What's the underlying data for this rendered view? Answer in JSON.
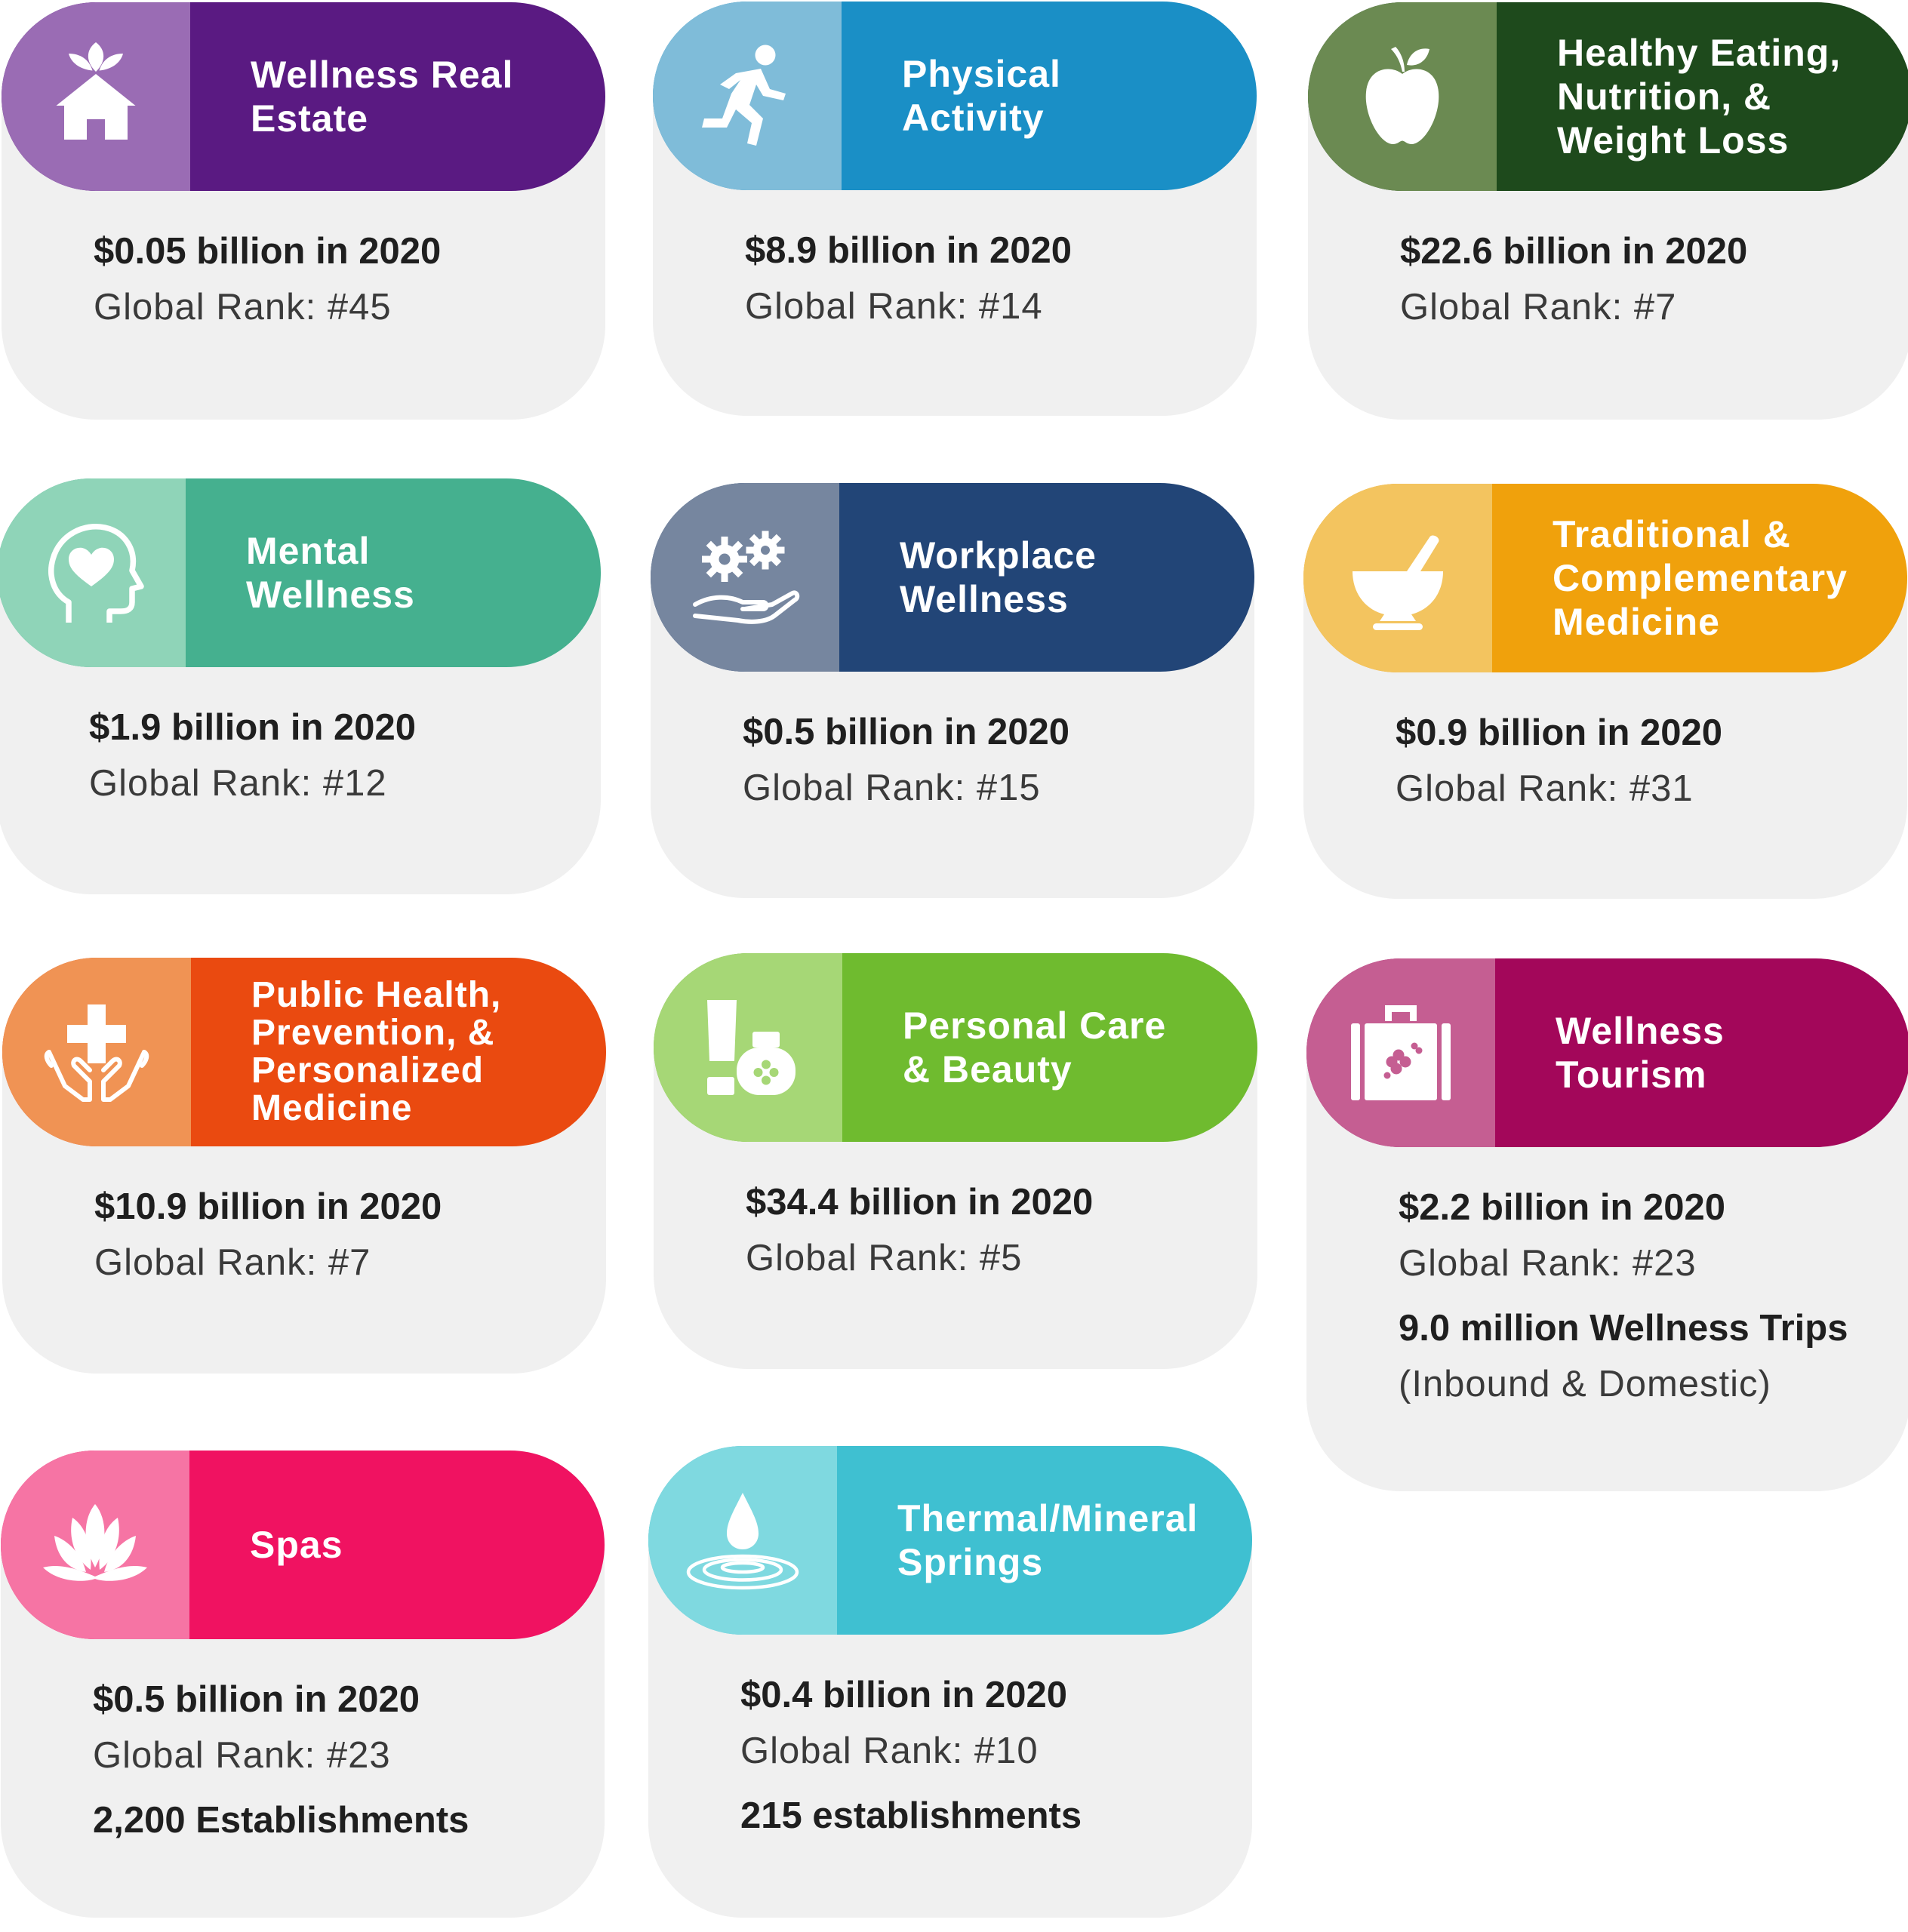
{
  "colors": {
    "card_bg": "#f0f0f0",
    "wellness_real_estate": [
      "#9a6cb4",
      "#5a1a82"
    ],
    "physical_activity": [
      "#7fbcd9",
      "#1a8fc6"
    ],
    "healthy_eating": [
      "#6b8a52",
      "#1e4a1c"
    ],
    "mental_wellness": [
      "#8fd4b8",
      "#45b08f"
    ],
    "workplace_wellness": [
      "#76869f",
      "#224577"
    ],
    "traditional_medicine": [
      "#f3c45f",
      "#f0a10c"
    ],
    "public_health": [
      "#f09354",
      "#ea4a10"
    ],
    "personal_care": [
      "#a6d776",
      "#6fbb2f"
    ],
    "wellness_tourism": [
      "#c55e92",
      "#a3075a"
    ],
    "spas": [
      "#f674a4",
      "#f01261"
    ],
    "thermal_springs": [
      "#7fd9e0",
      "#3fc0d1"
    ]
  },
  "cards": [
    {
      "title": "Wellness Real\nEstate",
      "icon": "house-leaf-icon",
      "value": "$0.05 billion in 2020",
      "rank": "Global Rank: #45"
    },
    {
      "title": "Physical\nActivity",
      "icon": "runner-icon",
      "value": "$8.9 billion in 2020",
      "rank": "Global Rank: #14"
    },
    {
      "title": "Healthy Eating,\nNutrition, &\nWeight Loss",
      "icon": "apple-icon",
      "value": "$22.6 billion in 2020",
      "rank": "Global Rank: #7"
    },
    {
      "title": "Mental\nWellness",
      "icon": "head-heart-icon",
      "value": "$1.9 billion in 2020",
      "rank": "Global Rank: #12"
    },
    {
      "title": "Workplace\nWellness",
      "icon": "gears-hand-icon",
      "value": "$0.5 billion in 2020",
      "rank": "Global Rank: #15"
    },
    {
      "title": "Traditional &\nComplementary\nMedicine",
      "icon": "mortar-pestle-icon",
      "value": "$0.9 billion in 2020",
      "rank": "Global Rank: #31"
    },
    {
      "title": "Public Health,\nPrevention, &\nPersonalized\nMedicine",
      "icon": "hands-cross-icon",
      "value": "$10.9 billion in 2020",
      "rank": "Global Rank: #7"
    },
    {
      "title": "Personal Care\n& Beauty",
      "icon": "cosmetics-icon",
      "value": "$34.4 billion in 2020",
      "rank": "Global Rank: #5"
    },
    {
      "title": "Wellness\nTourism",
      "icon": "suitcase-icon",
      "value": "$2.2 billion in 2020",
      "rank": "Global Rank: #23",
      "extra": "9.0 million Wellness Trips",
      "extra2": "(Inbound & Domestic)"
    },
    {
      "title": "Spas",
      "icon": "lotus-icon",
      "value": "$0.5 billion in 2020",
      "rank": "Global Rank: #23",
      "extra": "2,200 Establishments"
    },
    {
      "title": "Thermal/Mineral\nSprings",
      "icon": "water-drop-icon",
      "value": "$0.4 billion in 2020",
      "rank": "Global Rank: #10",
      "extra": "215 establishments"
    }
  ]
}
